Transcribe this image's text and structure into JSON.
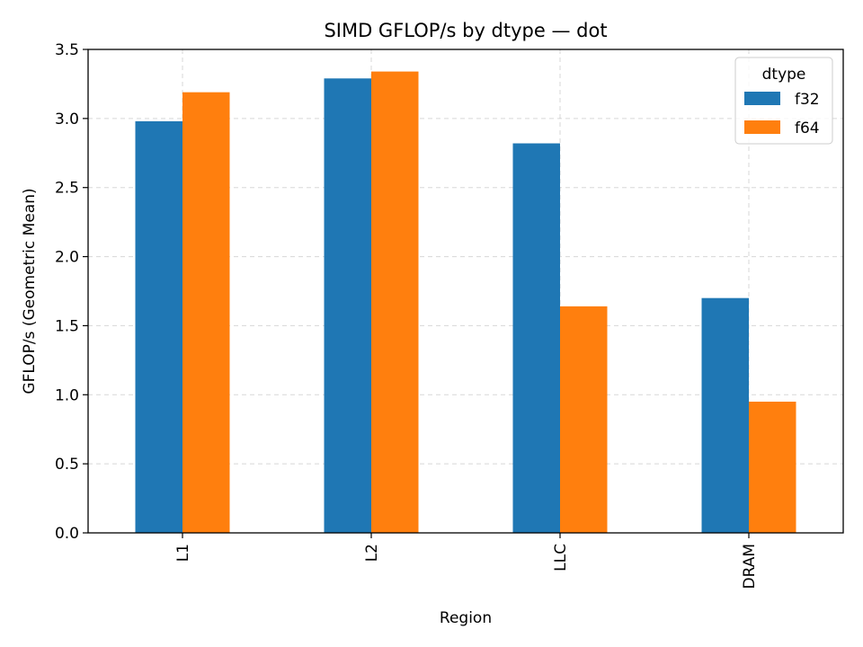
{
  "chart_data": {
    "type": "bar",
    "title": "SIMD GFLOP/s by dtype — dot",
    "xlabel": "Region",
    "ylabel": "GFLOP/s (Geometric Mean)",
    "categories": [
      "L1",
      "L2",
      "LLC",
      "DRAM"
    ],
    "series": [
      {
        "name": "f32",
        "color": "#1f77b4",
        "values": [
          2.98,
          3.29,
          2.82,
          1.7
        ]
      },
      {
        "name": "f64",
        "color": "#ff7f0e",
        "values": [
          3.19,
          3.34,
          1.64,
          0.95
        ]
      }
    ],
    "ylim": [
      0,
      3.5
    ],
    "yticks": [
      "0.0",
      "0.5",
      "1.0",
      "1.5",
      "2.0",
      "2.5",
      "3.0",
      "3.5"
    ],
    "grid": true,
    "legend": {
      "title": "dtype",
      "placement": "top-right"
    }
  }
}
